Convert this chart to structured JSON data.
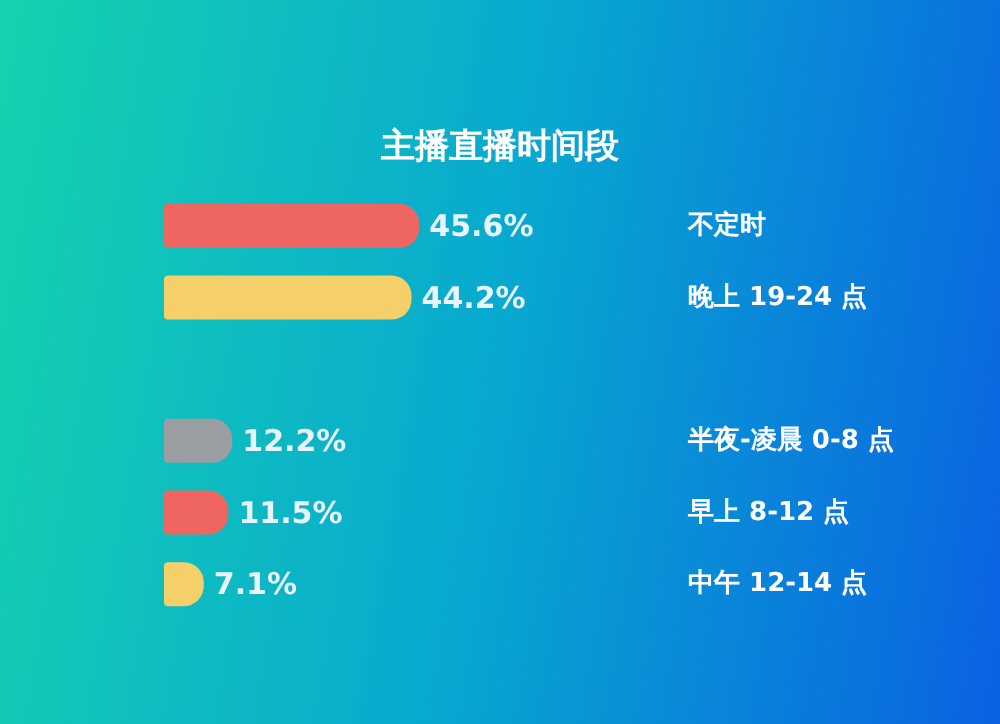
{
  "chart_data": {
    "type": "bar",
    "orientation": "horizontal",
    "title": "主播直播时间段",
    "categories": [
      "不定时",
      "晚上 19-24 点",
      null,
      "半夜-凌晨 0-8 点",
      "早上 8-12 点",
      "中午 12-14 点"
    ],
    "values": [
      45.6,
      44.2,
      null,
      12.2,
      11.5,
      7.1
    ],
    "colors": [
      "#ef6561",
      "#f5d06a",
      "#4a4f55",
      "#9a9ea3",
      "#ef6561",
      "#f5d06a"
    ],
    "value_labels": [
      "45.6%",
      "44.2%",
      null,
      "12.2%",
      "11.5%",
      "7.1%"
    ],
    "tick_labels": "y"
  }
}
